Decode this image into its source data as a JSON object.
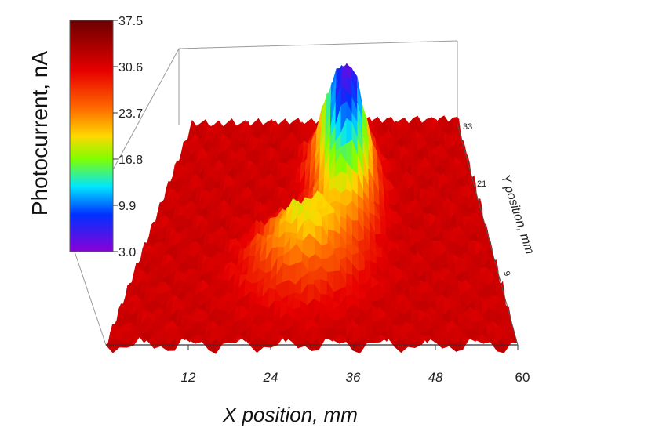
{
  "chart_data": {
    "type": "surface-3d",
    "title": "",
    "colorbar": {
      "label": "Photocurrent, nA",
      "ticks": [
        "37.5",
        "30.6",
        "23.7",
        "16.8",
        "9.9",
        "3.0"
      ],
      "range": [
        3.0,
        37.5
      ]
    },
    "x_axis": {
      "label": "X position, mm",
      "ticks": [
        "12",
        "24",
        "36",
        "48",
        "60"
      ],
      "range": [
        0,
        60
      ]
    },
    "y_axis": {
      "label": "Y position, mm",
      "ticks": [
        "33",
        "21",
        "9"
      ],
      "range": [
        0,
        40
      ]
    },
    "z_axis": {
      "range": [
        3.0,
        37.5
      ]
    },
    "baseline_value": 31.5,
    "features": [
      {
        "kind": "dip",
        "x": 35,
        "y": 26,
        "min_value": 4.5,
        "note": "deep minimum near center-back"
      },
      {
        "kind": "dip-ridge",
        "x": 28,
        "y": 14,
        "min_value": 18,
        "note": "shallower trough toward front-left"
      }
    ]
  }
}
